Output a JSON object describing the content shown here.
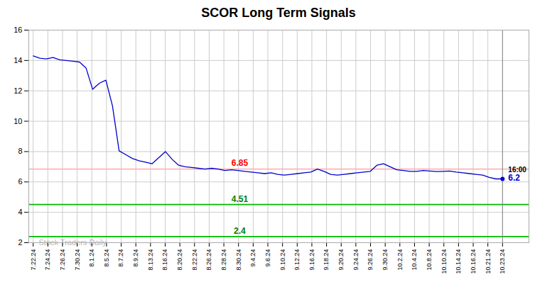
{
  "chart_data": {
    "type": "line",
    "title": "SCOR Long Term Signals",
    "x": [
      0,
      0.4507,
      0.9014,
      1.3521,
      1.8028,
      2.2535,
      2.7042,
      3.1549,
      3.6056,
      4.0563,
      4.507,
      4.9577,
      5.4085,
      5.8592,
      6.3099,
      6.7606,
      7.2113,
      7.662,
      8.1127,
      8.5634,
      9.0141,
      9.4648,
      9.9155,
      10.3662,
      10.8169,
      11.2676,
      11.7183,
      12.169,
      12.6197,
      13.0704,
      13.5211,
      13.9718,
      14.4225,
      14.8732,
      15.3239,
      15.7746,
      16.2254,
      16.6761,
      17.1268,
      17.5775,
      18.0282,
      18.4789,
      18.9296,
      19.3803,
      19.831,
      20.2817,
      20.7324,
      21.1831,
      21.6338,
      22.0845,
      22.5352,
      22.9859,
      23.4366,
      23.8873,
      24.338,
      24.7887,
      25.2394,
      25.6901,
      26.1408,
      26.5915,
      27.0423,
      27.493,
      27.9437,
      28.3944,
      28.8451,
      29.2958,
      29.7465,
      30.1972,
      30.6479,
      31.0986,
      31.5493,
      32
    ],
    "values": [
      14.3,
      14.15,
      14.1,
      14.2,
      14.05,
      14.0,
      13.95,
      13.9,
      13.5,
      12.1,
      12.5,
      12.7,
      11.0,
      8.05,
      7.8,
      7.55,
      7.4,
      7.3,
      7.2,
      7.6,
      8.0,
      7.5,
      7.1,
      7.0,
      6.95,
      6.9,
      6.85,
      6.9,
      6.85,
      6.75,
      6.8,
      6.75,
      6.7,
      6.65,
      6.6,
      6.55,
      6.6,
      6.5,
      6.45,
      6.5,
      6.55,
      6.6,
      6.65,
      6.85,
      6.7,
      6.5,
      6.45,
      6.5,
      6.55,
      6.6,
      6.65,
      6.7,
      7.1,
      7.2,
      7.0,
      6.8,
      6.75,
      6.7,
      6.7,
      6.75,
      6.72,
      6.68,
      6.7,
      6.72,
      6.65,
      6.6,
      6.55,
      6.5,
      6.45,
      6.3,
      6.2,
      6.2
    ],
    "color": "#0000cc",
    "xlim": [
      -0.3,
      33.8
    ],
    "xticks": [
      {
        "value": 0,
        "label": "7.22.24"
      },
      {
        "value": 1,
        "label": "7.24.24"
      },
      {
        "value": 2,
        "label": "7.26.24"
      },
      {
        "value": 3,
        "label": "7.30.24"
      },
      {
        "value": 4,
        "label": "8.1.24"
      },
      {
        "value": 5,
        "label": "8.5.24"
      },
      {
        "value": 6,
        "label": "8.7.24"
      },
      {
        "value": 7,
        "label": "8.9.24"
      },
      {
        "value": 8,
        "label": "8.13.24"
      },
      {
        "value": 9,
        "label": "8.16.24"
      },
      {
        "value": 10,
        "label": "8.20.24"
      },
      {
        "value": 11,
        "label": "8.22.24"
      },
      {
        "value": 12,
        "label": "8.26.24"
      },
      {
        "value": 13,
        "label": "8.28.24"
      },
      {
        "value": 14,
        "label": "8.30.24"
      },
      {
        "value": 15,
        "label": "9.4.24"
      },
      {
        "value": 16,
        "label": "9.6.24"
      },
      {
        "value": 17,
        "label": "9.10.24"
      },
      {
        "value": 18,
        "label": "9.12.24"
      },
      {
        "value": 19,
        "label": "9.16.24"
      },
      {
        "value": 20,
        "label": "9.18.24"
      },
      {
        "value": 21,
        "label": "9.20.24"
      },
      {
        "value": 22,
        "label": "9.24.24"
      },
      {
        "value": 23,
        "label": "9.26.24"
      },
      {
        "value": 24,
        "label": "9.30.24"
      },
      {
        "value": 25,
        "label": "10.2.24"
      },
      {
        "value": 26,
        "label": "10.4.24"
      },
      {
        "value": 27,
        "label": "10.8.24"
      },
      {
        "value": 28,
        "label": "10.10.24"
      },
      {
        "value": 29,
        "label": "10.14.24"
      },
      {
        "value": 30,
        "label": "10.16.24"
      },
      {
        "value": 31,
        "label": "10.21.24"
      },
      {
        "value": 32,
        "label": "10.23.24"
      }
    ],
    "ylim": [
      2,
      16
    ],
    "yticks": [
      2,
      4,
      6,
      8,
      10,
      12,
      14,
      16
    ],
    "grid": true,
    "hlines": [
      {
        "value": 6.85,
        "label": "6.85",
        "color": "#ffb3b3",
        "label_color": "red"
      },
      {
        "value": 4.51,
        "label": "4.51",
        "color": "#00bb00",
        "label_color": "green"
      },
      {
        "value": 2.4,
        "label": "2.4",
        "color": "#00bb00",
        "label_color": "green"
      }
    ],
    "vlines": [
      {
        "value": 32,
        "color": "#888888"
      }
    ],
    "annotations": [
      "16:00",
      "6.2"
    ],
    "watermark": "Stock Traders Daily"
  }
}
